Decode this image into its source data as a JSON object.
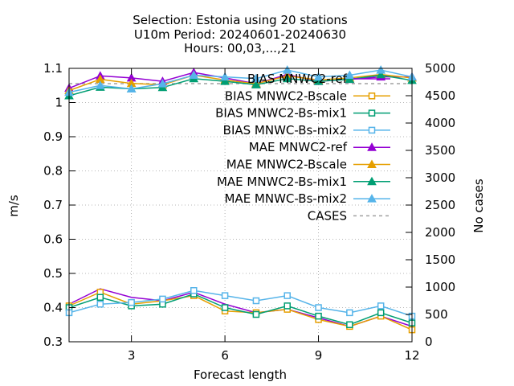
{
  "chart_data": {
    "type": "line",
    "title_lines": [
      "Selection: Estonia using    20 stations",
      "U10m   Period: 20240601-20240630",
      "Hours: 00,03,...,21"
    ],
    "xlabel": "Forecast length",
    "ylabel": "m/s",
    "y2label": "No cases",
    "xlim": [
      1,
      12
    ],
    "ylim": [
      0.3,
      1.1
    ],
    "y2lim": [
      0,
      5000
    ],
    "xticks": [
      3,
      6,
      9,
      12
    ],
    "yticks": [
      0.3,
      0.4,
      0.5,
      0.6,
      0.7,
      0.8,
      0.9,
      1,
      1.1
    ],
    "y2ticks": [
      0,
      500,
      1000,
      1500,
      2000,
      2500,
      3000,
      3500,
      4000,
      4500,
      5000
    ],
    "grid": true,
    "legend_position": "top-right",
    "x": [
      1,
      2,
      3,
      4,
      5,
      6,
      7,
      8,
      9,
      10,
      11,
      12
    ],
    "series": [
      {
        "name": "BIAS MNWC2-ref",
        "axis": "y1",
        "marker": "none",
        "color": "#9400d3",
        "values": [
          0.41,
          0.455,
          0.43,
          0.42,
          0.445,
          0.41,
          0.385,
          0.395,
          0.37,
          0.345,
          0.375,
          0.345
        ]
      },
      {
        "name": "BIAS MNWC2-Bscale",
        "axis": "y1",
        "marker": "square",
        "color": "#e69f00",
        "values": [
          0.405,
          0.445,
          0.41,
          0.42,
          0.435,
          0.39,
          0.385,
          0.395,
          0.365,
          0.345,
          0.375,
          0.335
        ]
      },
      {
        "name": "BIAS MNWC2-Bs-mix1",
        "axis": "y1",
        "marker": "square",
        "color": "#009e73",
        "values": [
          0.4,
          0.43,
          0.405,
          0.41,
          0.44,
          0.4,
          0.38,
          0.405,
          0.375,
          0.35,
          0.385,
          0.355
        ]
      },
      {
        "name": "BIAS MNWC-Bs-mix2",
        "axis": "y1",
        "marker": "square",
        "color": "#56b4e9",
        "values": [
          0.385,
          0.41,
          0.415,
          0.425,
          0.45,
          0.435,
          0.42,
          0.435,
          0.4,
          0.385,
          0.405,
          0.375
        ]
      },
      {
        "name": "MAE MNWC2-ref",
        "axis": "y1",
        "marker": "triangle",
        "color": "#9400d3",
        "values": [
          1.042,
          1.078,
          1.072,
          1.062,
          1.088,
          1.072,
          1.055,
          1.082,
          1.062,
          1.068,
          1.075,
          1.075
        ]
      },
      {
        "name": "MAE MNWC2-Bscale",
        "axis": "y1",
        "marker": "triangle",
        "color": "#e69f00",
        "values": [
          1.035,
          1.068,
          1.056,
          1.052,
          1.08,
          1.066,
          1.055,
          1.078,
          1.066,
          1.072,
          1.082,
          1.072
        ]
      },
      {
        "name": "MAE MNWC2-Bs-mix1",
        "axis": "y1",
        "marker": "triangle",
        "color": "#009e73",
        "values": [
          1.02,
          1.045,
          1.04,
          1.044,
          1.07,
          1.062,
          1.052,
          1.07,
          1.062,
          1.068,
          1.08,
          1.065
        ]
      },
      {
        "name": "MAE MNWC-Bs-mix2",
        "axis": "y1",
        "marker": "triangle",
        "color": "#56b4e9",
        "values": [
          1.03,
          1.05,
          1.04,
          1.055,
          1.08,
          1.075,
          1.07,
          1.095,
          1.075,
          1.08,
          1.095,
          1.075
        ]
      },
      {
        "name": "CASES",
        "axis": "y2",
        "marker": "none",
        "color": "#a0a0a0",
        "dashed": true,
        "values": [
          4720,
          4720,
          4720,
          4720,
          4720,
          4720,
          4720,
          4720,
          4720,
          4720,
          4720,
          4720
        ]
      }
    ]
  }
}
